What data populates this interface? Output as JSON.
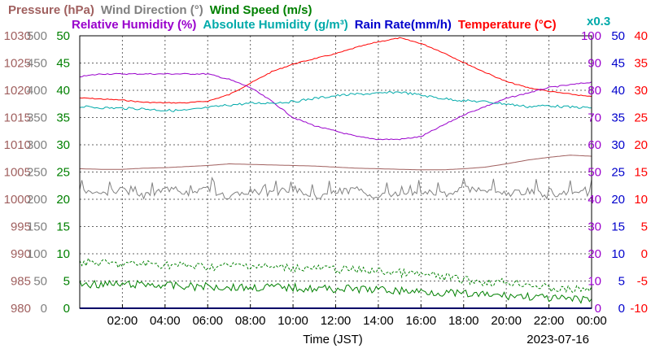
{
  "chart_data": {
    "type": "line",
    "title_row1": [
      {
        "text": "Pressure (hPa)",
        "color": "#a0605f"
      },
      {
        "text": "Wind Direction (°)",
        "color": "#808080"
      },
      {
        "text": "Wind Speed (m/s)",
        "color": "#008000"
      }
    ],
    "title_row2": [
      {
        "text": "Relative Humidity (%)",
        "color": "#9900cc"
      },
      {
        "text": "Absolute Humidity (g/m³)",
        "color": "#00aaaa"
      },
      {
        "text": "Rain Rate(mm/h)",
        "color": "#0000cc"
      },
      {
        "text": "Temperature (°C)",
        "color": "#ff0000"
      }
    ],
    "right_note": {
      "text": "x0.3",
      "color": "#00aaaa"
    },
    "xlabel": "Time (JST)",
    "date": "2023-07-16",
    "xlim": [
      0,
      24
    ],
    "x_ticks": [
      "02:00",
      "04:00",
      "06:00",
      "08:00",
      "10:00",
      "12:00",
      "14:00",
      "16:00",
      "18:00",
      "20:00",
      "22:00",
      "00:00"
    ],
    "axes": [
      {
        "name": "pressure",
        "color": "#a0605f",
        "side": "left",
        "ticks": [
          "980",
          "985",
          "990",
          "995",
          "1000",
          "1005",
          "1010",
          "1015",
          "1020",
          "1025",
          "1030"
        ]
      },
      {
        "name": "wind-direction",
        "color": "#808080",
        "side": "left",
        "ticks": [
          "0",
          "50",
          "100",
          "150",
          "200",
          "250",
          "300",
          "350",
          "400",
          "450",
          "500"
        ]
      },
      {
        "name": "wind-speed",
        "color": "#008000",
        "side": "left",
        "ticks": [
          "0",
          "5",
          "10",
          "15",
          "20",
          "25",
          "30",
          "35",
          "40",
          "45",
          "50"
        ]
      },
      {
        "name": "relative-humidity",
        "color": "#9900cc",
        "side": "right",
        "ticks": [
          "0",
          "10",
          "20",
          "30",
          "40",
          "50",
          "60",
          "70",
          "80",
          "90",
          "100"
        ]
      },
      {
        "name": "rain-rate",
        "color": "#0000cc",
        "side": "right",
        "ticks": [
          "0",
          "5",
          "10",
          "15",
          "20",
          "25",
          "30",
          "35",
          "40",
          "45",
          "50"
        ]
      },
      {
        "name": "temperature",
        "color": "#ff0000",
        "side": "right",
        "ticks": [
          "-10",
          "-5",
          "0",
          "5",
          "10",
          "15",
          "20",
          "25",
          "30",
          "35",
          "40"
        ]
      }
    ],
    "series": [
      {
        "key": "temperature",
        "color": "#ff0000",
        "axis_range": [
          -10,
          40
        ],
        "x": [
          0,
          1,
          2,
          3,
          4,
          5,
          6,
          7,
          8,
          9,
          10,
          11,
          12,
          13,
          14,
          15,
          16,
          17,
          18,
          19,
          20,
          21,
          22,
          23,
          24
        ],
        "y": [
          28.6,
          28.4,
          28.2,
          27.8,
          27.7,
          27.7,
          28.0,
          29.2,
          31.3,
          33.4,
          34.8,
          35.8,
          36.7,
          37.9,
          38.9,
          39.6,
          38.6,
          37.0,
          35.1,
          33.3,
          31.6,
          30.5,
          29.8,
          29.3,
          28.8
        ]
      },
      {
        "key": "relative-humidity",
        "color": "#9900cc",
        "axis_range": [
          0,
          100
        ],
        "x": [
          0,
          1,
          2,
          3,
          4,
          5,
          6,
          7,
          8,
          9,
          10,
          11,
          12,
          13,
          14,
          15,
          16,
          17,
          18,
          19,
          20,
          21,
          22,
          23,
          24
        ],
        "y": [
          85,
          86,
          86,
          86,
          86,
          86,
          86,
          84,
          81,
          76,
          70,
          67,
          65,
          63,
          62,
          62,
          63,
          67,
          71,
          74,
          77,
          79,
          81,
          82,
          83
        ]
      },
      {
        "key": "absolute-humidity",
        "color": "#00aaaa",
        "axis_range": [
          0,
          100
        ],
        "x": [
          0,
          1,
          2,
          3,
          4,
          5,
          6,
          7,
          8,
          9,
          10,
          11,
          12,
          13,
          14,
          15,
          16,
          17,
          18,
          19,
          20,
          21,
          22,
          23,
          24
        ],
        "y": [
          74,
          73.6,
          73.4,
          73.2,
          72.6,
          72.6,
          73.6,
          74.6,
          75.2,
          75.4,
          75.8,
          77,
          78,
          78.6,
          78.8,
          79.4,
          78.2,
          77,
          76.2,
          75.8,
          75,
          74,
          74.4,
          73.8,
          73.6
        ]
      },
      {
        "key": "pressure",
        "color": "#a0605f",
        "axis_range": [
          980,
          1030
        ],
        "x": [
          0,
          1,
          2,
          3,
          4,
          5,
          6,
          7,
          8,
          9,
          10,
          11,
          12,
          13,
          14,
          15,
          16,
          17,
          18,
          19,
          20,
          21,
          22,
          23,
          24
        ],
        "y": [
          1005.6,
          1005.5,
          1005.5,
          1005.7,
          1005.8,
          1006.0,
          1006.2,
          1006.5,
          1006.4,
          1006.3,
          1006.2,
          1006.1,
          1005.9,
          1005.7,
          1005.6,
          1005.5,
          1005.4,
          1005.4,
          1005.6,
          1005.9,
          1006.5,
          1007.2,
          1007.7,
          1008.1,
          1007.9
        ]
      },
      {
        "key": "wind-direction",
        "color": "#808080",
        "axis_range": [
          0,
          500
        ],
        "x": [
          0,
          1,
          2,
          3,
          4,
          5,
          6,
          7,
          8,
          9,
          10,
          11,
          12,
          13,
          14,
          15,
          16,
          17,
          18,
          19,
          20,
          21,
          22,
          23,
          24
        ],
        "y": [
          215,
          210,
          218,
          205,
          220,
          212,
          218,
          205,
          215,
          210,
          220,
          205,
          212,
          218,
          205,
          210,
          215,
          208,
          220,
          212,
          210,
          215,
          205,
          212,
          210
        ]
      },
      {
        "key": "wind-speed-max",
        "color": "#008000",
        "dashed": true,
        "axis_range": [
          0,
          50
        ],
        "x": [
          0,
          1,
          2,
          3,
          4,
          5,
          6,
          7,
          8,
          9,
          10,
          11,
          12,
          13,
          14,
          15,
          16,
          17,
          18,
          19,
          20,
          21,
          22,
          23,
          24
        ],
        "y": [
          8.5,
          8.3,
          8.0,
          8.2,
          8.0,
          7.8,
          7.6,
          7.8,
          7.9,
          7.5,
          7.5,
          7.3,
          7.2,
          7.0,
          6.8,
          6.5,
          6.2,
          5.8,
          5.2,
          4.8,
          4.8,
          4.5,
          3.6,
          3.4,
          3.6
        ]
      },
      {
        "key": "wind-speed-avg",
        "color": "#008000",
        "axis_range": [
          0,
          50
        ],
        "x": [
          0,
          1,
          2,
          3,
          4,
          5,
          6,
          7,
          8,
          9,
          10,
          11,
          12,
          13,
          14,
          15,
          16,
          17,
          18,
          19,
          20,
          21,
          22,
          23,
          24
        ],
        "y": [
          4.5,
          4.4,
          4.3,
          4.4,
          4.2,
          4.0,
          4.0,
          3.9,
          3.8,
          3.9,
          3.8,
          3.6,
          3.6,
          3.5,
          3.4,
          3.2,
          3.1,
          2.9,
          2.6,
          2.4,
          2.3,
          2.2,
          1.8,
          1.6,
          1.7
        ]
      },
      {
        "key": "rain-rate",
        "color": "#0000cc",
        "axis_range": [
          0,
          50
        ],
        "x": [
          0,
          24
        ],
        "y": [
          0,
          0
        ]
      }
    ]
  }
}
